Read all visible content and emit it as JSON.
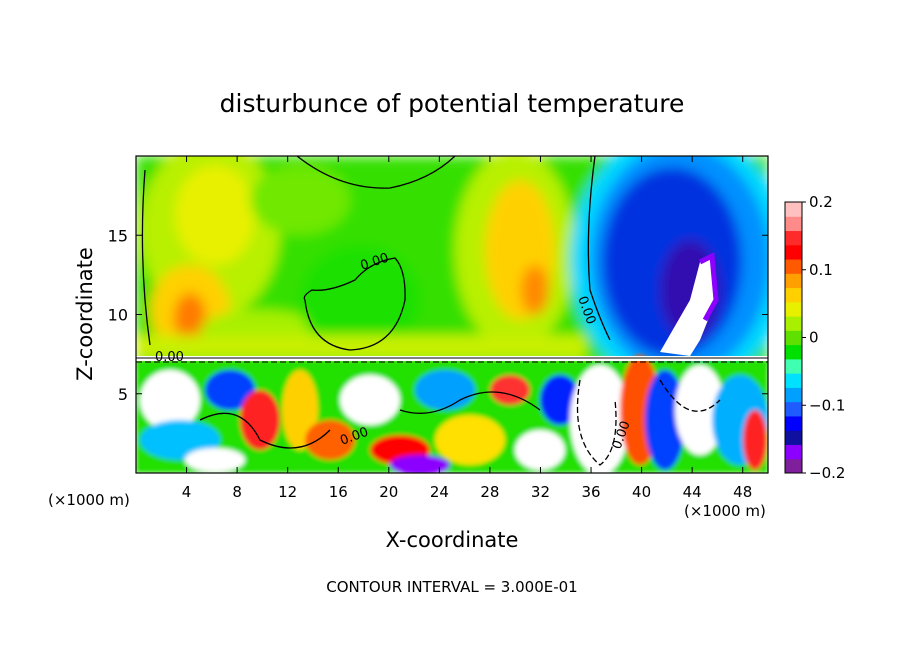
{
  "chart_data": {
    "type": "heatmap",
    "title": "disturbunce of potential temperature",
    "xlabel": "X-coordinate",
    "ylabel": "Z-coordinate",
    "x_unit_left": "(×1000 m)",
    "x_unit_right": "(×1000 m)",
    "xlim": [
      0,
      50
    ],
    "ylim": [
      0,
      20
    ],
    "x_ticks": [
      4,
      8,
      12,
      16,
      20,
      24,
      28,
      32,
      36,
      40,
      44,
      48
    ],
    "y_ticks": [
      5,
      10,
      15
    ],
    "colorbar": {
      "ticks": [
        "0.2",
        "0.1",
        "0",
        "−0.1",
        "−0.2"
      ],
      "values": [
        0.2,
        0.1,
        0,
        -0.1,
        -0.2
      ],
      "range": [
        -0.2,
        0.2
      ],
      "colors": [
        "#7f1f9c",
        "#8b00ff",
        "#1010a0",
        "#0000ff",
        "#1e5cff",
        "#00a0ff",
        "#00e0ff",
        "#40ffb0",
        "#00e000",
        "#60e000",
        "#a8f000",
        "#e8f000",
        "#ffd000",
        "#ff9f00",
        "#ff5a00",
        "#ff0000",
        "#ff2b2b",
        "#ff8a8a",
        "#ffc0c0"
      ]
    },
    "contour_labels": [
      "0.00",
      "0.00",
      "0.00",
      "0.00",
      "0.00"
    ],
    "footnote": "CONTOUR INTERVAL = 3.000E-01"
  }
}
